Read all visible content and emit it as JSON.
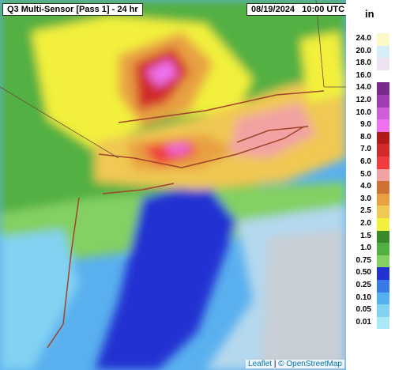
{
  "map_title": "Q3 Multi-Sensor [Pass 1] - 24 hr",
  "timestamp": "08/19/2024   10:00 UTC",
  "legend": {
    "unit": "in",
    "items": [
      {
        "label": "24.0",
        "color": "#fdf8c8"
      },
      {
        "label": "20.0",
        "color": "#d6eef6"
      },
      {
        "label": "18.0",
        "color": "#efe2f0"
      },
      {
        "label": "16.0",
        "color": "#ffffff"
      },
      {
        "label": "14.0",
        "color": "#7a2a8e"
      },
      {
        "label": "12.0",
        "color": "#a03eb2"
      },
      {
        "label": "10.0",
        "color": "#cf5ed6"
      },
      {
        "label": "9.0",
        "color": "#ee72ee"
      },
      {
        "label": "8.0",
        "color": "#b01a1a"
      },
      {
        "label": "7.0",
        "color": "#d22a2a"
      },
      {
        "label": "6.0",
        "color": "#f03c3c"
      },
      {
        "label": "5.0",
        "color": "#f2a2a2"
      },
      {
        "label": "4.0",
        "color": "#d07032"
      },
      {
        "label": "3.0",
        "color": "#e8a042"
      },
      {
        "label": "2.5",
        "color": "#f0c852"
      },
      {
        "label": "2.0",
        "color": "#f2f03e"
      },
      {
        "label": "1.5",
        "color": "#3a8a2a"
      },
      {
        "label": "1.0",
        "color": "#52b042"
      },
      {
        "label": "0.75",
        "color": "#84d062"
      },
      {
        "label": "0.50",
        "color": "#2232d2"
      },
      {
        "label": "0.25",
        "color": "#3a7ae8"
      },
      {
        "label": "0.10",
        "color": "#52b2f0"
      },
      {
        "label": "0.05",
        "color": "#82d2f2"
      },
      {
        "label": "0.01",
        "color": "#aae8f8"
      }
    ]
  },
  "attribution": {
    "leaflet": "Leaflet",
    "separator": "|",
    "osm": "© OpenStreetMap"
  }
}
